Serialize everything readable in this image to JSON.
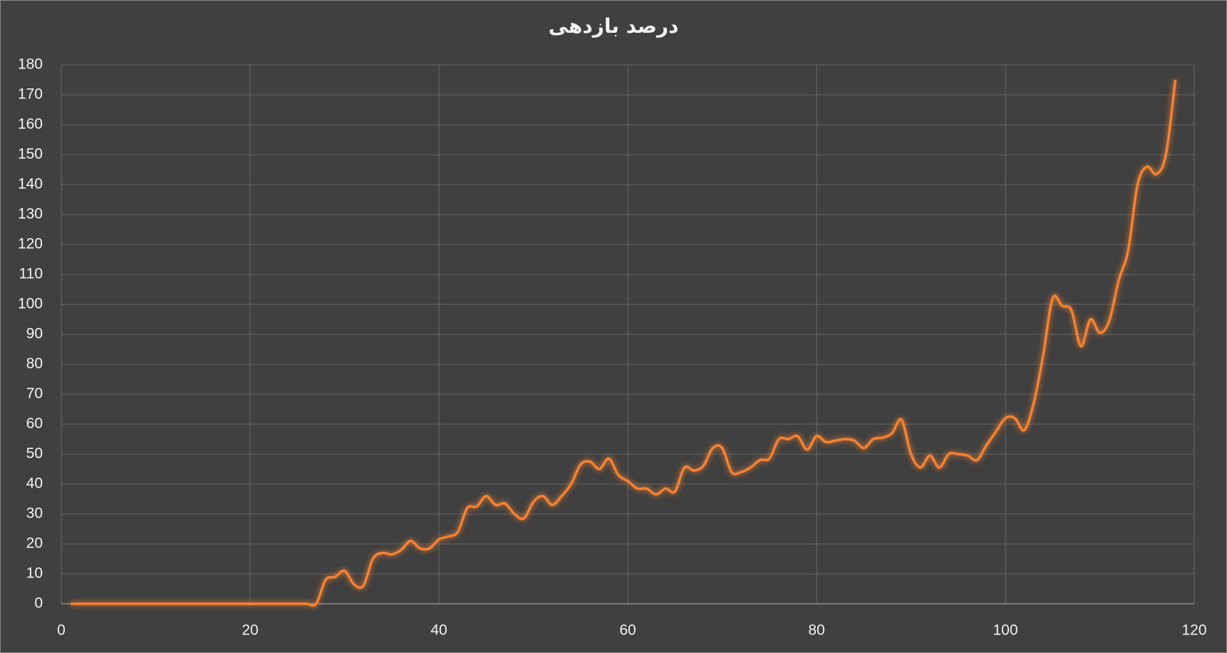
{
  "chart_data": {
    "type": "line",
    "title": "درصد بازدهی",
    "x": [
      1,
      2,
      3,
      4,
      5,
      6,
      7,
      8,
      9,
      10,
      11,
      12,
      13,
      14,
      15,
      16,
      17,
      18,
      19,
      20,
      21,
      22,
      23,
      24,
      25,
      26,
      27,
      28,
      29,
      30,
      31,
      32,
      33,
      34,
      35,
      36,
      37,
      38,
      39,
      40,
      41,
      42,
      43,
      44,
      45,
      46,
      47,
      48,
      49,
      50,
      51,
      52,
      53,
      54,
      55,
      56,
      57,
      58,
      59,
      60,
      61,
      62,
      63,
      64,
      65,
      66,
      67,
      68,
      69,
      70,
      71,
      72,
      73,
      74,
      75,
      76,
      77,
      78,
      79,
      80,
      81,
      82,
      83,
      84,
      85,
      86,
      87,
      88,
      89,
      90,
      91,
      92,
      93,
      94,
      95,
      96,
      97,
      98,
      99,
      100,
      101,
      102,
      103,
      104,
      105,
      106,
      107,
      108,
      109,
      110,
      111,
      112,
      113,
      114,
      115,
      116,
      117,
      118
    ],
    "series": [
      {
        "name": "درصد بازدهی",
        "color": "#f58231",
        "values": [
          0,
          0,
          0,
          0,
          0,
          0,
          0,
          0,
          0,
          0,
          0,
          0,
          0,
          0,
          0,
          0,
          0,
          0,
          0,
          0,
          0,
          0,
          0,
          0,
          0,
          0,
          0,
          8,
          9,
          11,
          6.5,
          6,
          15,
          17,
          16.5,
          18,
          21,
          18.5,
          18.5,
          21.5,
          22.5,
          24,
          32,
          32.5,
          36,
          33,
          33.5,
          30,
          28.5,
          34,
          36,
          33,
          36,
          40,
          46.5,
          47.5,
          45,
          48.5,
          43,
          41,
          38.5,
          38.5,
          36.5,
          38.5,
          37.5,
          45.5,
          44.5,
          46,
          52,
          52,
          44,
          44,
          45.5,
          48,
          48.5,
          55,
          55,
          56,
          51.5,
          56,
          54,
          54.5,
          55,
          54.5,
          52,
          55,
          55.5,
          57,
          61.5,
          50,
          45.5,
          49.5,
          45.5,
          50,
          50,
          49.5,
          48,
          53,
          57.5,
          62,
          62,
          58,
          67,
          83,
          102,
          99.5,
          98,
          86,
          95,
          90.5,
          94.5,
          108,
          118,
          140,
          146,
          143.5,
          150,
          175
        ]
      }
    ],
    "xlim": [
      0,
      120
    ],
    "xticks": [
      0,
      20,
      40,
      60,
      80,
      100,
      120
    ],
    "ylim": [
      0,
      180
    ],
    "yticks": [
      0,
      10,
      20,
      30,
      40,
      50,
      60,
      70,
      80,
      90,
      100,
      110,
      120,
      130,
      140,
      150,
      160,
      170,
      180
    ],
    "grid": true
  }
}
